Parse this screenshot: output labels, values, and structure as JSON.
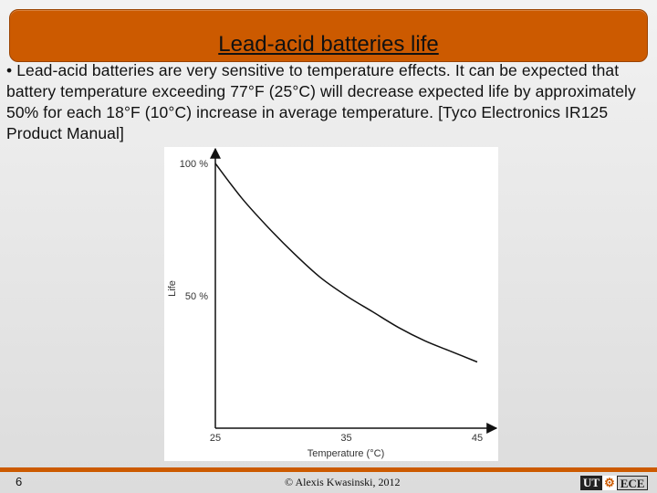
{
  "slide": {
    "title": "Lead-acid batteries life",
    "body": "• Lead-acid batteries are very sensitive to temperature effects. It can be expected that battery temperature exceeding 77°F (25°C) will decrease expected life by approximately 50% for each 18°F (10°C) increase in average temperature. [Tyco Electronics IR125 Product Manual]",
    "slide_number": "6",
    "copyright": "© Alexis Kwasinski, 2012",
    "logo": {
      "left": "UT",
      "middle": "⚙",
      "right": "ECE"
    },
    "colors": {
      "accent": "#cc5a00",
      "background": "#e6e6e6"
    }
  },
  "chart_data": {
    "type": "line",
    "title": "",
    "xlabel": "Temperature (°C)",
    "ylabel": "Life",
    "x_ticks": [
      "25",
      "35",
      "45"
    ],
    "y_ticks": [
      "100 %",
      "50 %"
    ],
    "xlim": [
      25,
      45
    ],
    "ylim": [
      0,
      100
    ],
    "grid": false,
    "series": [
      {
        "x": [
          25,
          27,
          29,
          31,
          33,
          35,
          37,
          39,
          41,
          43,
          45
        ],
        "y": [
          100,
          87,
          76,
          66,
          57,
          50,
          44,
          38,
          33,
          29,
          25
        ]
      }
    ]
  }
}
